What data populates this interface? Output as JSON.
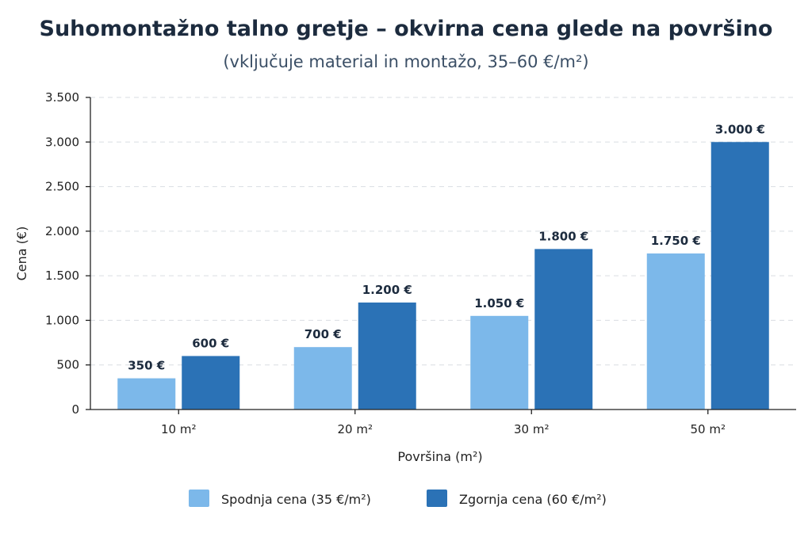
{
  "chart_data": {
    "type": "bar",
    "title": "Suhomontažno talno gretje – okvirna cena glede na površino",
    "subtitle": "(vključuje material in montažo, 35–60 €/m²)",
    "xlabel": "Površina (m²)",
    "ylabel": "Cena (€)",
    "categories": [
      "10 m²",
      "20 m²",
      "30 m²",
      "50 m²"
    ],
    "series": [
      {
        "name": "Spodnja cena (35 €/m²)",
        "color": "#7cb8ea",
        "values": [
          350,
          700,
          1050,
          1750
        ],
        "labels": [
          "350 €",
          "700 €",
          "1.050 €",
          "1.750 €"
        ]
      },
      {
        "name": "Zgornja cena (60 €/m²)",
        "color": "#2b72b6",
        "values": [
          600,
          1200,
          1800,
          3000
        ],
        "labels": [
          "600 €",
          "1.200 €",
          "1.800 €",
          "3.000 €"
        ]
      }
    ],
    "ylim": [
      0,
      3500
    ],
    "yticks": [
      0,
      500,
      1000,
      1500,
      2000,
      2500,
      3000,
      3500
    ],
    "ytick_labels": [
      "0",
      "500",
      "1.000",
      "1.500",
      "2.000",
      "2.500",
      "3.000",
      "3.500"
    ],
    "grid": true,
    "legend_position": "bottom"
  }
}
